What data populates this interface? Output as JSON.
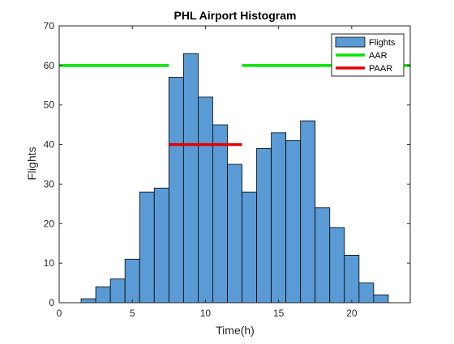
{
  "chart_data": {
    "type": "bar",
    "title": "PHL Airport Histogram",
    "xlabel": "Time(h)",
    "ylabel": "Flights",
    "xlim": [
      0,
      24
    ],
    "ylim": [
      0,
      70
    ],
    "xticks": [
      0,
      5,
      10,
      15,
      20
    ],
    "yticks": [
      0,
      10,
      20,
      30,
      40,
      50,
      60,
      70
    ],
    "grid": false,
    "legend_position": "top-right",
    "bin_width": 1,
    "bins": [
      {
        "start": 1.5,
        "value": 1
      },
      {
        "start": 2.5,
        "value": 4
      },
      {
        "start": 3.5,
        "value": 6
      },
      {
        "start": 4.5,
        "value": 11
      },
      {
        "start": 5.5,
        "value": 28
      },
      {
        "start": 6.5,
        "value": 29
      },
      {
        "start": 7.5,
        "value": 57
      },
      {
        "start": 8.5,
        "value": 63
      },
      {
        "start": 9.5,
        "value": 52
      },
      {
        "start": 10.5,
        "value": 45
      },
      {
        "start": 11.5,
        "value": 35
      },
      {
        "start": 12.5,
        "value": 28
      },
      {
        "start": 13.5,
        "value": 39
      },
      {
        "start": 14.5,
        "value": 43
      },
      {
        "start": 15.5,
        "value": 41
      },
      {
        "start": 16.5,
        "value": 46
      },
      {
        "start": 17.5,
        "value": 24
      },
      {
        "start": 18.5,
        "value": 19
      },
      {
        "start": 19.5,
        "value": 12
      },
      {
        "start": 20.5,
        "value": 5
      },
      {
        "start": 21.5,
        "value": 2
      }
    ],
    "series": [
      {
        "name": "Flights",
        "kind": "histogram",
        "color": "#5b9bd5"
      },
      {
        "name": "AAR",
        "kind": "line",
        "color": "#00e600",
        "segments": [
          {
            "x": [
              0,
              7.5
            ],
            "y": [
              60,
              60
            ]
          },
          {
            "x": [
              12.5,
              24
            ],
            "y": [
              60,
              60
            ]
          }
        ]
      },
      {
        "name": "PAAR",
        "kind": "line",
        "color": "#e60000",
        "segments": [
          {
            "x": [
              7.5,
              12.5
            ],
            "y": [
              40,
              40
            ]
          }
        ]
      }
    ]
  }
}
